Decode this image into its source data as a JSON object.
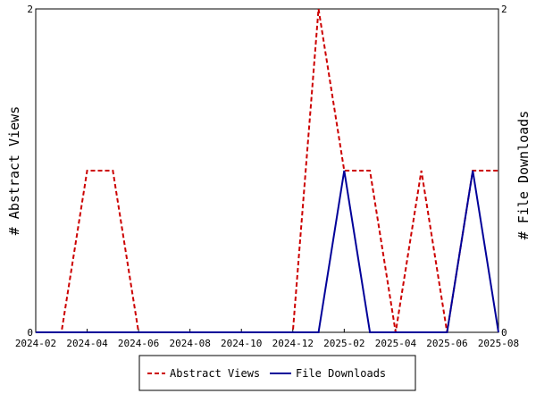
{
  "chart_data": {
    "type": "line",
    "x_ticks": [
      "2024-02",
      "2024-04",
      "2024-06",
      "2024-08",
      "2024-10",
      "2024-12",
      "2025-02",
      "2025-04",
      "2025-06",
      "2025-08"
    ],
    "x": [
      "2024-02",
      "2024-03",
      "2024-04",
      "2024-05",
      "2024-06",
      "2024-07",
      "2024-08",
      "2024-09",
      "2024-10",
      "2024-11",
      "2024-12",
      "2025-01",
      "2025-02",
      "2025-03",
      "2025-04",
      "2025-05",
      "2025-06",
      "2025-07",
      "2025-08"
    ],
    "series": [
      {
        "name": "Abstract Views",
        "axis": "left",
        "color": "#cc0000",
        "style": "dashed",
        "values": [
          0,
          0,
          1,
          1,
          0,
          0,
          0,
          0,
          0,
          0,
          0,
          2,
          1,
          1,
          0,
          1,
          0,
          1,
          1
        ]
      },
      {
        "name": "File Downloads",
        "axis": "right",
        "color": "#000099",
        "style": "solid",
        "values": [
          0,
          0,
          0,
          0,
          0,
          0,
          0,
          0,
          0,
          0,
          0,
          0,
          1,
          0,
          0,
          0,
          0,
          1,
          0
        ]
      }
    ],
    "ylabel_left": "# Abstract Views",
    "ylabel_right": "# File Downloads",
    "ylim_left": [
      0,
      2
    ],
    "ylim_right": [
      0,
      2
    ],
    "y_ticks_left": [
      "0",
      "2"
    ],
    "y_ticks_right": [
      "0",
      "2"
    ],
    "grid": false,
    "legend_position": "bottom"
  }
}
